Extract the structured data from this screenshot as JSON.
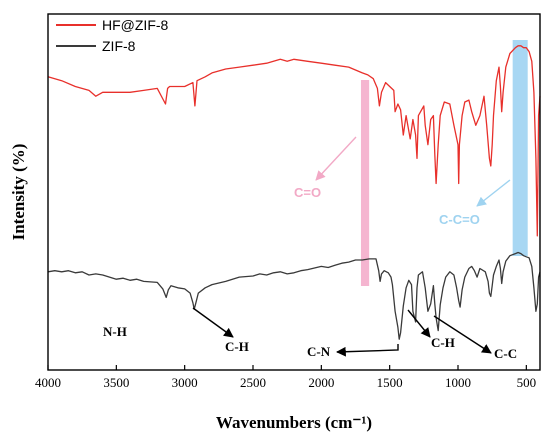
{
  "chart_data": {
    "type": "line",
    "xlabel": "Wavenumbers (cm⁻¹)",
    "ylabel": "Intensity (%)",
    "xlim": [
      4000,
      400
    ],
    "x_reversed": true,
    "x_ticks": [
      4000,
      3500,
      3000,
      2500,
      2000,
      1500,
      1000,
      500
    ],
    "y_ticks": [],
    "legend_position": "top-left",
    "colors": {
      "hf_zif8": "#e8302b",
      "zif8": "#3a3a3a",
      "pink_band": "#f3a8c8",
      "blue_band": "#9fd3f2"
    },
    "series": [
      {
        "name": "HF@ZIF-8",
        "color_key": "hf_zif8",
        "x": [
          4000,
          3900,
          3800,
          3700,
          3650,
          3600,
          3500,
          3400,
          3300,
          3200,
          3140,
          3125,
          3110,
          3050,
          3000,
          2940,
          2925,
          2910,
          2850,
          2800,
          2700,
          2600,
          2500,
          2400,
          2300,
          2250,
          2200,
          2100,
          2000,
          1900,
          1800,
          1700,
          1660,
          1620,
          1590,
          1575,
          1560,
          1530,
          1500,
          1470,
          1460,
          1440,
          1420,
          1400,
          1380,
          1350,
          1330,
          1310,
          1300,
          1290,
          1250,
          1240,
          1220,
          1200,
          1180,
          1170,
          1160,
          1145,
          1130,
          1100,
          1060,
          1030,
          1000,
          995,
          990,
          970,
          950,
          920,
          900,
          870,
          840,
          810,
          790,
          770,
          760,
          750,
          740,
          720,
          700,
          690,
          680,
          670,
          650,
          620,
          580,
          560,
          540,
          520,
          500,
          480,
          460,
          445,
          430,
          420,
          410,
          400
        ],
        "y": [
          0.2,
          0.22,
          0.25,
          0.27,
          0.3,
          0.28,
          0.28,
          0.28,
          0.27,
          0.26,
          0.34,
          0.26,
          0.25,
          0.25,
          0.25,
          0.23,
          0.35,
          0.22,
          0.2,
          0.18,
          0.16,
          0.15,
          0.14,
          0.13,
          0.11,
          0.12,
          0.11,
          0.12,
          0.13,
          0.14,
          0.15,
          0.18,
          0.19,
          0.21,
          0.26,
          0.35,
          0.28,
          0.23,
          0.25,
          0.27,
          0.38,
          0.34,
          0.37,
          0.5,
          0.4,
          0.52,
          0.42,
          0.5,
          0.62,
          0.4,
          0.35,
          0.45,
          0.55,
          0.42,
          0.4,
          0.6,
          0.75,
          0.55,
          0.4,
          0.33,
          0.34,
          0.45,
          0.55,
          0.75,
          0.55,
          0.4,
          0.33,
          0.32,
          0.38,
          0.45,
          0.4,
          0.3,
          0.45,
          0.62,
          0.66,
          0.55,
          0.4,
          0.22,
          0.15,
          0.25,
          0.38,
          0.28,
          0.15,
          0.08,
          0.05,
          0.04,
          0.04,
          0.05,
          0.05,
          0.07,
          0.12,
          0.28,
          0.62,
          1.02,
          0.4,
          0.3
        ]
      },
      {
        "name": "ZIF-8",
        "color_key": "zif8",
        "x": [
          4000,
          3950,
          3900,
          3850,
          3800,
          3750,
          3700,
          3650,
          3600,
          3550,
          3500,
          3450,
          3400,
          3350,
          3300,
          3200,
          3160,
          3135,
          3120,
          3100,
          3050,
          3000,
          2960,
          2940,
          2930,
          2920,
          2900,
          2850,
          2800,
          2700,
          2600,
          2500,
          2450,
          2400,
          2350,
          2300,
          2250,
          2200,
          2150,
          2100,
          2000,
          1950,
          1900,
          1850,
          1800,
          1750,
          1700,
          1650,
          1600,
          1580,
          1570,
          1560,
          1540,
          1510,
          1490,
          1480,
          1460,
          1440,
          1430,
          1420,
          1400,
          1380,
          1360,
          1340,
          1330,
          1310,
          1300,
          1290,
          1260,
          1240,
          1220,
          1200,
          1180,
          1170,
          1160,
          1145,
          1130,
          1110,
          1090,
          1060,
          1030,
          1010,
          995,
          985,
          970,
          950,
          920,
          900,
          880,
          860,
          840,
          800,
          780,
          770,
          760,
          750,
          740,
          720,
          700,
          690,
          680,
          670,
          650,
          620,
          580,
          560,
          540,
          520,
          500,
          480,
          460,
          445,
          430,
          420,
          410,
          400
        ],
        "y": [
          0.25,
          0.24,
          0.25,
          0.24,
          0.26,
          0.25,
          0.28,
          0.27,
          0.28,
          0.3,
          0.32,
          0.31,
          0.33,
          0.32,
          0.34,
          0.35,
          0.41,
          0.49,
          0.42,
          0.38,
          0.4,
          0.41,
          0.45,
          0.54,
          0.6,
          0.55,
          0.45,
          0.4,
          0.37,
          0.34,
          0.3,
          0.29,
          0.27,
          0.28,
          0.26,
          0.25,
          0.27,
          0.26,
          0.24,
          0.23,
          0.2,
          0.21,
          0.19,
          0.17,
          0.16,
          0.14,
          0.14,
          0.13,
          0.13,
          0.24,
          0.34,
          0.27,
          0.24,
          0.26,
          0.3,
          0.37,
          0.62,
          0.77,
          0.88,
          0.82,
          0.57,
          0.4,
          0.33,
          0.37,
          0.62,
          0.72,
          0.4,
          0.28,
          0.25,
          0.4,
          0.62,
          0.55,
          0.38,
          0.55,
          0.68,
          0.8,
          0.56,
          0.4,
          0.3,
          0.25,
          0.28,
          0.4,
          0.52,
          0.58,
          0.42,
          0.3,
          0.22,
          0.2,
          0.24,
          0.3,
          0.22,
          0.25,
          0.34,
          0.45,
          0.48,
          0.38,
          0.28,
          0.2,
          0.14,
          0.22,
          0.36,
          0.25,
          0.15,
          0.1,
          0.08,
          0.07,
          0.08,
          0.1,
          0.11,
          0.12,
          0.2,
          0.4,
          0.62,
          0.55,
          0.3,
          0.25
        ]
      }
    ],
    "bands": [
      {
        "color_key": "pink_band",
        "x_from": 1710,
        "x_to": 1650
      },
      {
        "color_key": "blue_band",
        "x_from": 600,
        "x_to": 490
      }
    ],
    "annotations": [
      {
        "id": "nh",
        "text": "N-H"
      },
      {
        "id": "ch1",
        "text": "C-H"
      },
      {
        "id": "cn",
        "text": "C-N"
      },
      {
        "id": "ch2",
        "text": "C-H"
      },
      {
        "id": "cc",
        "text": "C-C"
      },
      {
        "id": "co",
        "text": "C=O"
      },
      {
        "id": "cco",
        "text": "C-C=O"
      }
    ]
  }
}
